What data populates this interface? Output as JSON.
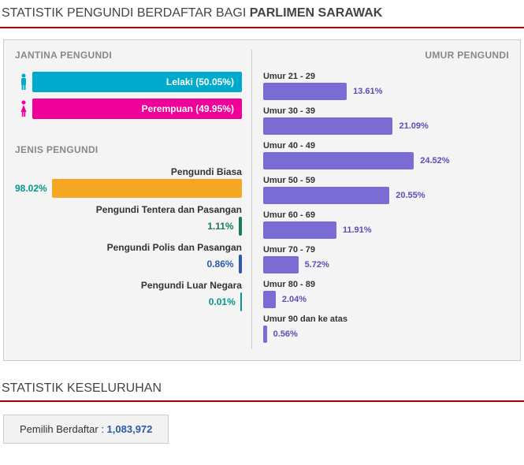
{
  "title_prefix": "STATISTIK PENGUNDI BERDAFTAR BAGI ",
  "title_bold": "PARLIMEN SARAWAK",
  "colors": {
    "male": "#00aacc",
    "female": "#ee0099",
    "type_bar": "#f5a623",
    "type_tick": "#1a7a5a",
    "age_bar": "#7a6cd4",
    "age_text": "#5a4fb8",
    "pct_teal": "#00998a",
    "pct_blue": "#2a5aa8",
    "total_text": "#2a5aa8"
  },
  "gender": {
    "section_title": "JANTINA PENGUNDI",
    "male_label": "Lelaki (50.05%)",
    "male_width_pct": 100,
    "female_label": "Perempuan (49.95%)",
    "female_width_pct": 99.8
  },
  "voter_type": {
    "section_title": "JENIS PENGUNDI",
    "items": [
      {
        "label": "Pengundi Biasa",
        "pct": "98.02%",
        "width_pct": 100,
        "color": "#f5a623",
        "pct_color": "#00998a",
        "pct_before": true
      },
      {
        "label": "Pengundi Tentera dan Pasangan",
        "pct": "1.11%",
        "width_pct": 2,
        "color": "#1a7a5a",
        "pct_color": "#1a7a5a",
        "pct_before": false
      },
      {
        "label": "Pengundi Polis dan Pasangan",
        "pct": "0.86%",
        "width_pct": 2,
        "color": "#2a5aa8",
        "pct_color": "#2a5aa8",
        "pct_before": false
      },
      {
        "label": "Pengundi Luar Negara",
        "pct": "0.01%",
        "width_pct": 0,
        "color": "#00998a",
        "pct_color": "#00998a",
        "pct_before": false
      }
    ]
  },
  "age": {
    "section_title": "UMUR PENGUNDI",
    "max_pct_scale": 40,
    "items": [
      {
        "label": "Umur 21 - 29",
        "pct_text": "13.61%",
        "value": 13.61
      },
      {
        "label": "Umur 30 - 39",
        "pct_text": "21.09%",
        "value": 21.09
      },
      {
        "label": "Umur 40 - 49",
        "pct_text": "24.52%",
        "value": 24.52
      },
      {
        "label": "Umur 50 - 59",
        "pct_text": "20.55%",
        "value": 20.55
      },
      {
        "label": "Umur 60 - 69",
        "pct_text": "11.91%",
        "value": 11.91
      },
      {
        "label": "Umur 70 - 79",
        "pct_text": "5.72%",
        "value": 5.72
      },
      {
        "label": "Umur 80 - 89",
        "pct_text": "2.04%",
        "value": 2.04
      },
      {
        "label": "Umur 90 dan ke atas",
        "pct_text": "0.56%",
        "value": 0.56
      }
    ]
  },
  "overall": {
    "section_title": "STATISTIK KESELURUHAN",
    "label": "Pemilih Berdaftar : ",
    "value": "1,083,972"
  }
}
